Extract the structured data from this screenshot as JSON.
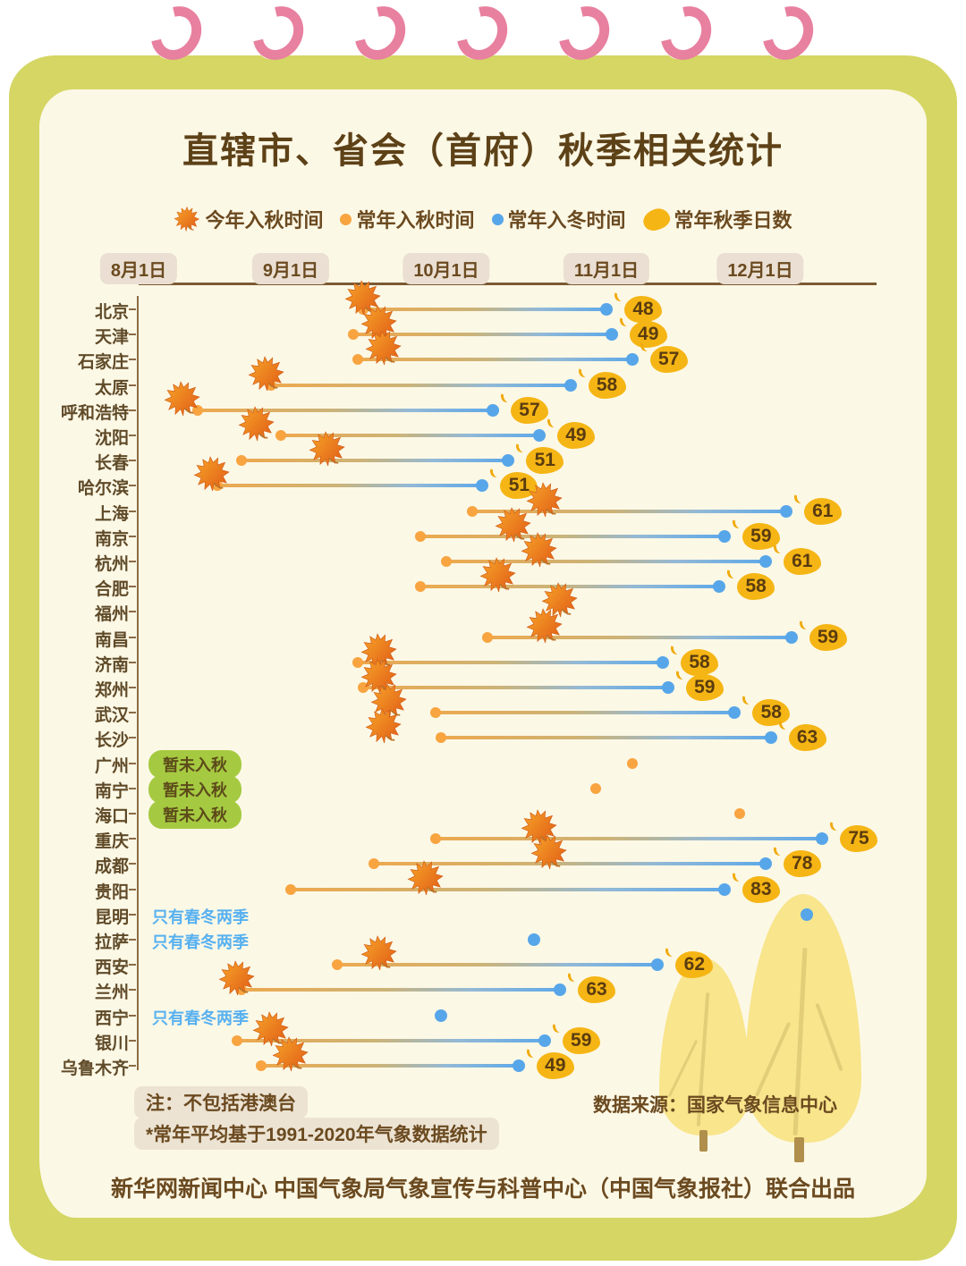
{
  "title": "直辖市、省会（首府）秋季相关统计",
  "legend": [
    {
      "icon": "maple-leaf-icon",
      "label": "今年入秋时间"
    },
    {
      "icon": "orange-dot-icon",
      "label": "常年入秋时间"
    },
    {
      "icon": "blue-dot-icon",
      "label": "常年入冬时间"
    },
    {
      "icon": "gold-leaf-icon",
      "label": "常年秋季日数"
    }
  ],
  "chart_data": {
    "type": "dumbbell_timeline",
    "x_axis": {
      "ticks": [
        "8月1日",
        "9月1日",
        "10月1日",
        "11月1日",
        "12月1日"
      ],
      "range": [
        "8月1日",
        "12月23日"
      ]
    },
    "series_meaning": {
      "this_year_autumn": "今年入秋时间（枫叶）",
      "normal_autumn": "常年入秋时间（橙点）",
      "normal_winter": "常年入冬时间（蓝点）",
      "autumn_days": "常年秋季日数（黄叶徽标数值）"
    },
    "rows": [
      {
        "city": "北京",
        "this_year_autumn": "9月15日",
        "normal_autumn": "9月15日",
        "normal_winter": "11月1日",
        "autumn_days": 48,
        "note": null
      },
      {
        "city": "天津",
        "this_year_autumn": "9月18日",
        "normal_autumn": "9月13日",
        "normal_winter": "11月2日",
        "autumn_days": 49,
        "note": null
      },
      {
        "city": "石家庄",
        "this_year_autumn": "9月19日",
        "normal_autumn": "9月14日",
        "normal_winter": "11月6日",
        "autumn_days": 57,
        "note": null
      },
      {
        "city": "太原",
        "this_year_autumn": "8月27日",
        "normal_autumn": "8月28日",
        "normal_winter": "10月25日",
        "autumn_days": 58,
        "note": null
      },
      {
        "city": "呼和浩特",
        "this_year_autumn": "8月10日",
        "normal_autumn": "8月13日",
        "normal_winter": "10月10日",
        "autumn_days": 57,
        "note": null
      },
      {
        "city": "沈阳",
        "this_year_autumn": "8月25日",
        "normal_autumn": "8月30日",
        "normal_winter": "10月19日",
        "autumn_days": 49,
        "note": null
      },
      {
        "city": "长春",
        "this_year_autumn": "9月8日",
        "normal_autumn": "8月22日",
        "normal_winter": "10月13日",
        "autumn_days": 51,
        "note": null
      },
      {
        "city": "哈尔滨",
        "this_year_autumn": "8月16日",
        "normal_autumn": "8月17日",
        "normal_winter": "10月8日",
        "autumn_days": 51,
        "note": null
      },
      {
        "city": "上海",
        "this_year_autumn": "10月20日",
        "normal_autumn": "10月6日",
        "normal_winter": "12月6日",
        "autumn_days": 61,
        "note": null
      },
      {
        "city": "南京",
        "this_year_autumn": "10月14日",
        "normal_autumn": "9月26日",
        "normal_winter": "11月24日",
        "autumn_days": 59,
        "note": null
      },
      {
        "city": "杭州",
        "this_year_autumn": "10月19日",
        "normal_autumn": "10月1日",
        "normal_winter": "12月2日",
        "autumn_days": 61,
        "note": null
      },
      {
        "city": "合肥",
        "this_year_autumn": "10月11日",
        "normal_autumn": "9月26日",
        "normal_winter": "11月23日",
        "autumn_days": 58,
        "note": null
      },
      {
        "city": "福州",
        "this_year_autumn": "10月23日",
        "normal_autumn": null,
        "normal_winter": null,
        "autumn_days": null,
        "note": null
      },
      {
        "city": "南昌",
        "this_year_autumn": "10月20日",
        "normal_autumn": "10月9日",
        "normal_winter": "12月7日",
        "autumn_days": 59,
        "note": null
      },
      {
        "city": "济南",
        "this_year_autumn": "9月18日",
        "normal_autumn": "9月14日",
        "normal_winter": "11月12日",
        "autumn_days": 58,
        "note": null
      },
      {
        "city": "郑州",
        "this_year_autumn": "9月18日",
        "normal_autumn": "9月15日",
        "normal_winter": "11月13日",
        "autumn_days": 59,
        "note": null
      },
      {
        "city": "武汉",
        "this_year_autumn": "9月20日",
        "normal_autumn": "9月29日",
        "normal_winter": "11月26日",
        "autumn_days": 58,
        "note": null
      },
      {
        "city": "长沙",
        "this_year_autumn": "9月19日",
        "normal_autumn": "9月30日",
        "normal_winter": "12月3日",
        "autumn_days": 63,
        "note": null
      },
      {
        "city": "广州",
        "this_year_autumn": null,
        "normal_autumn": "11月6日",
        "normal_winter": null,
        "autumn_days": null,
        "note": "暂未入秋"
      },
      {
        "city": "南宁",
        "this_year_autumn": null,
        "normal_autumn": "10月30日",
        "normal_winter": null,
        "autumn_days": null,
        "note": "暂未入秋"
      },
      {
        "city": "海口",
        "this_year_autumn": null,
        "normal_autumn": "11月27日",
        "normal_winter": null,
        "autumn_days": null,
        "note": "暂未入秋"
      },
      {
        "city": "重庆",
        "this_year_autumn": "10月19日",
        "normal_autumn": "9月29日",
        "normal_winter": "12月13日",
        "autumn_days": 75,
        "note": null
      },
      {
        "city": "成都",
        "this_year_autumn": "10月21日",
        "normal_autumn": "9月17日",
        "normal_winter": "12月2日",
        "autumn_days": 78,
        "note": null
      },
      {
        "city": "贵阳",
        "this_year_autumn": "9月27日",
        "normal_autumn": "9月1日",
        "normal_winter": "11月24日",
        "autumn_days": 83,
        "note": null
      },
      {
        "city": "昆明",
        "this_year_autumn": null,
        "normal_autumn": null,
        "normal_winter": "12月10日",
        "autumn_days": null,
        "note": "只有春冬两季"
      },
      {
        "city": "拉萨",
        "this_year_autumn": null,
        "normal_autumn": null,
        "normal_winter": "10月18日",
        "autumn_days": null,
        "note": "只有春冬两季"
      },
      {
        "city": "西安",
        "this_year_autumn": "9月18日",
        "normal_autumn": "9月10日",
        "normal_winter": "11月11日",
        "autumn_days": 62,
        "note": null
      },
      {
        "city": "兰州",
        "this_year_autumn": "8月21日",
        "normal_autumn": "8月22日",
        "normal_winter": "10月23日",
        "autumn_days": 63,
        "note": null
      },
      {
        "city": "西宁",
        "this_year_autumn": null,
        "normal_autumn": null,
        "normal_winter": "9月30日",
        "autumn_days": null,
        "note": "只有春冬两季"
      },
      {
        "city": "银川",
        "this_year_autumn": "8月28日",
        "normal_autumn": "8月21日",
        "normal_winter": "10月20日",
        "autumn_days": 59,
        "note": null
      },
      {
        "city": "乌鲁木齐",
        "this_year_autumn": "9月1日",
        "normal_autumn": "8月26日",
        "normal_winter": "10月15日",
        "autumn_days": 49,
        "note": null
      }
    ]
  },
  "notes": {
    "line1": "注：不包括港澳台",
    "line2": "*常年平均基于1991-2020年气象数据统计"
  },
  "source": "数据来源：国家气象信息中心",
  "footer": "新华网新闻中心 中国气象局气象宣传与科普中心（中国气象报社）联合出品",
  "colors": {
    "page_background": "#fcf8e6",
    "frame": "#d5d664",
    "binder_ring": "#e8809f",
    "title_text": "#5d4117",
    "body_text": "#6b4a20",
    "normal_autumn_dot": "#f8a440",
    "normal_winter_dot": "#57a6e9",
    "autumn_days_badge": "#f5b514",
    "not_yet_autumn_pill": "#a5ca41",
    "two_seasons_text": "#58b1f0",
    "maple_leaf": "#ee7d1e",
    "tree": "#f8e58c"
  }
}
